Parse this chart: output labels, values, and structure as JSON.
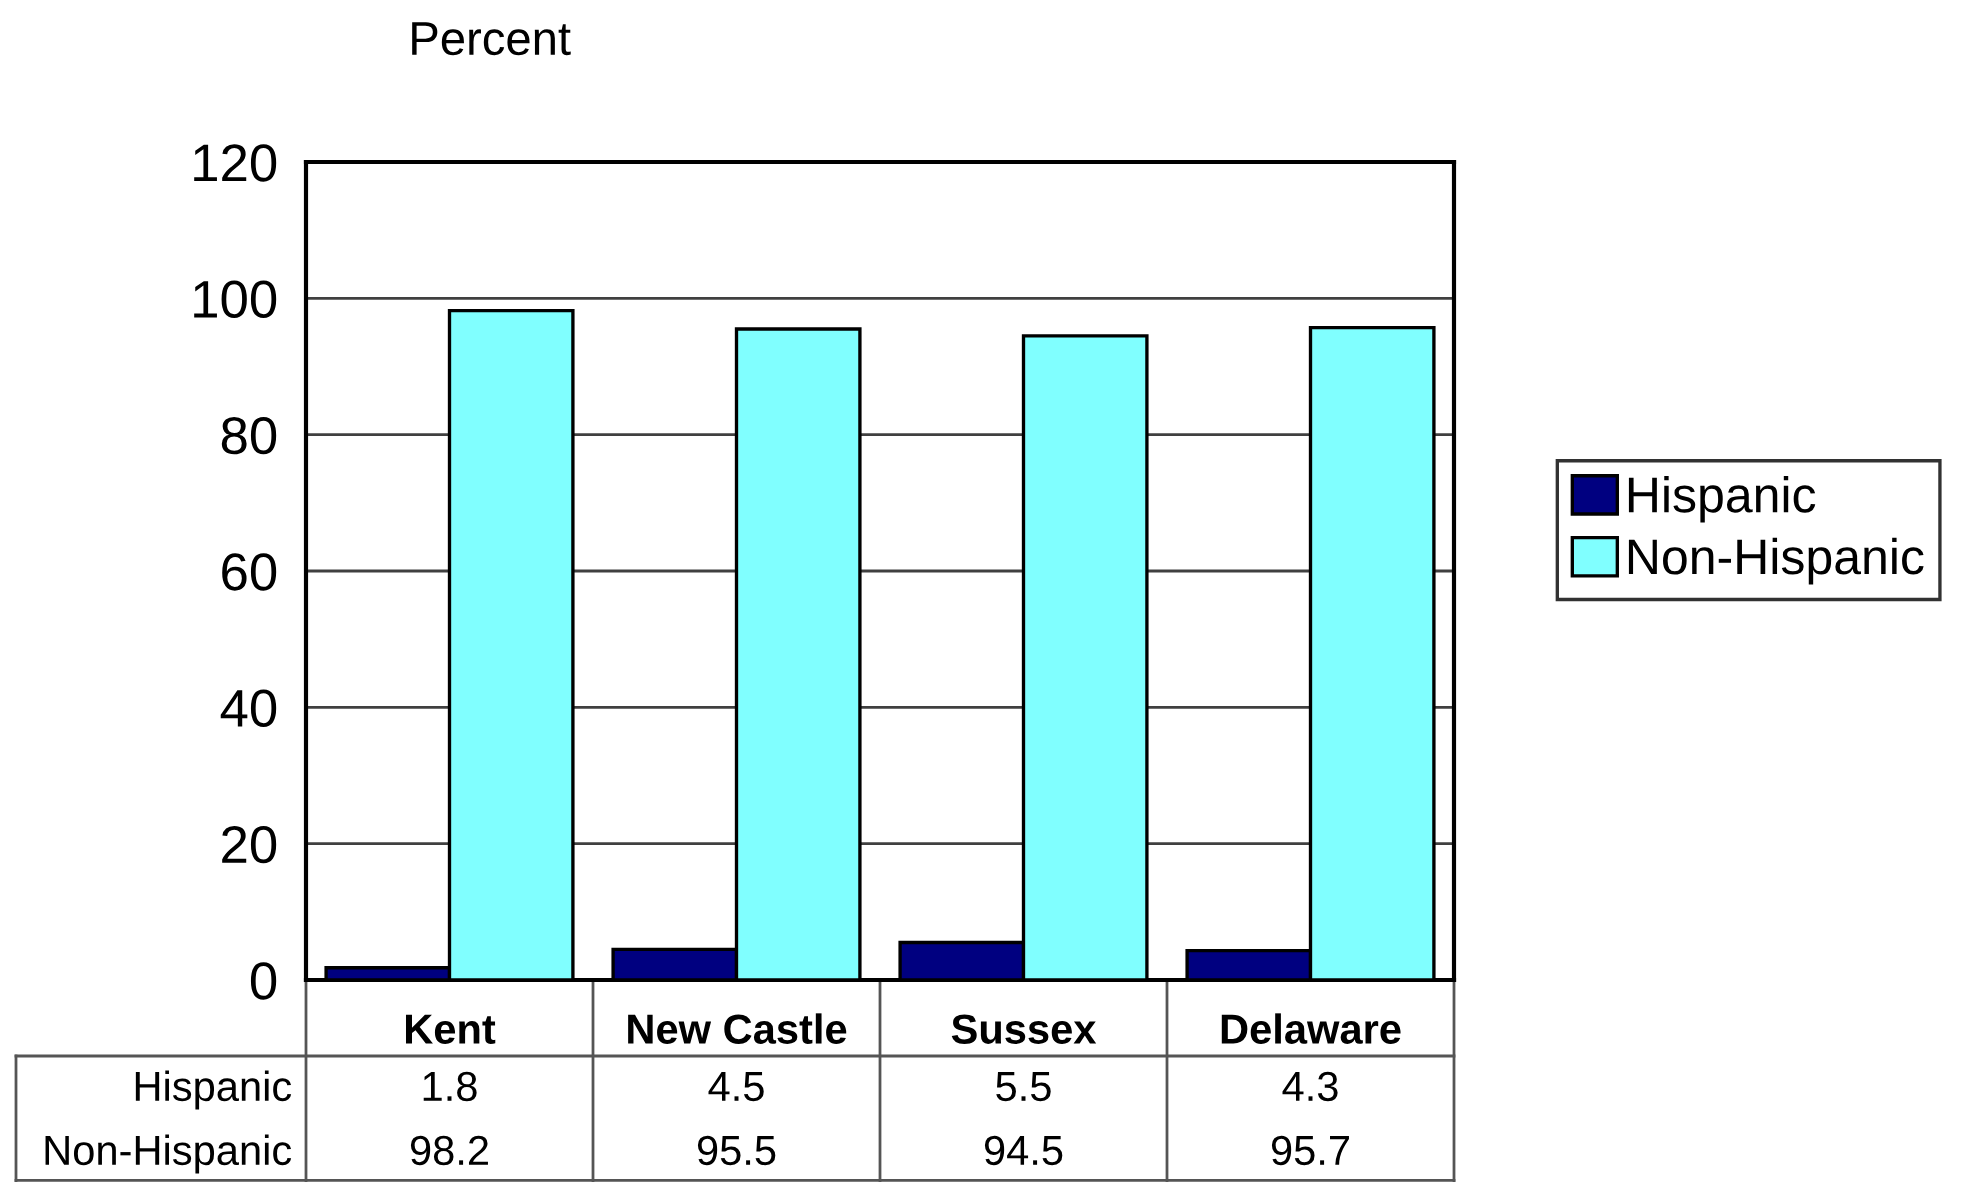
{
  "chart_data": {
    "type": "bar",
    "ylabel": "Percent",
    "categories": [
      "Kent",
      "New Castle",
      "Sussex",
      "Delaware"
    ],
    "series": [
      {
        "name": "Hispanic",
        "color": "#000080",
        "values": [
          1.8,
          4.5,
          5.5,
          4.3
        ]
      },
      {
        "name": "Non-Hispanic",
        "color": "#80ffff",
        "values": [
          98.2,
          95.5,
          94.5,
          95.7
        ]
      }
    ],
    "ylim": [
      0,
      120
    ],
    "yticks": [
      0,
      20,
      40,
      60,
      80,
      100,
      120
    ],
    "grid": "y",
    "legend": "right",
    "data_labels": true
  }
}
